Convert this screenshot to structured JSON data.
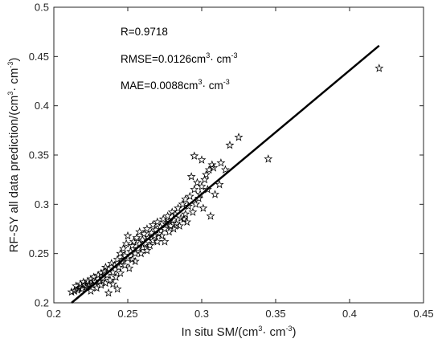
{
  "chart_data": {
    "type": "scatter",
    "xlabel": {
      "main": "In situ SM/(cm",
      "sup1": "3",
      "mid": "· cm",
      "sup2": "-3",
      "end": ")"
    },
    "ylabel": {
      "main": "RF-SY all data prediction/(cm",
      "sup1": "3",
      "mid": "· cm",
      "sup2": "-3",
      "end": ")"
    },
    "xlim": [
      0.2,
      0.45
    ],
    "ylim": [
      0.2,
      0.5
    ],
    "x_ticks": [
      "0.2",
      "0.25",
      "0.3",
      "0.35",
      "0.4",
      "0.45"
    ],
    "y_ticks": [
      "0.2",
      "0.25",
      "0.3",
      "0.35",
      "0.4",
      "0.45",
      "0.5"
    ],
    "grid": false,
    "annotations": {
      "r": "R=0.9718",
      "rmse": {
        "main": "RMSE=0.0126cm",
        "sup1": "3",
        "mid": "· cm",
        "sup2": "-3"
      },
      "mae": {
        "main": "MAE=0.0088cm",
        "sup1": "3",
        "mid": "· cm",
        "sup2": "-3"
      }
    },
    "fit_line": {
      "x": [
        0.212,
        0.42
      ],
      "y": [
        0.2,
        0.461
      ]
    },
    "marker": "star",
    "colors": {
      "markers": "#000000",
      "line": "#000000"
    },
    "points": [
      [
        0.212,
        0.211
      ],
      [
        0.214,
        0.212
      ],
      [
        0.216,
        0.213
      ],
      [
        0.215,
        0.217
      ],
      [
        0.217,
        0.215
      ],
      [
        0.218,
        0.219
      ],
      [
        0.219,
        0.214
      ],
      [
        0.22,
        0.221
      ],
      [
        0.221,
        0.218
      ],
      [
        0.222,
        0.216
      ],
      [
        0.223,
        0.222
      ],
      [
        0.224,
        0.219
      ],
      [
        0.225,
        0.224
      ],
      [
        0.225,
        0.212
      ],
      [
        0.226,
        0.218
      ],
      [
        0.227,
        0.226
      ],
      [
        0.228,
        0.221
      ],
      [
        0.229,
        0.215
      ],
      [
        0.23,
        0.228
      ],
      [
        0.231,
        0.222
      ],
      [
        0.232,
        0.218
      ],
      [
        0.232,
        0.23
      ],
      [
        0.233,
        0.225
      ],
      [
        0.234,
        0.232
      ],
      [
        0.235,
        0.22
      ],
      [
        0.235,
        0.236
      ],
      [
        0.236,
        0.228
      ],
      [
        0.237,
        0.21
      ],
      [
        0.237,
        0.234
      ],
      [
        0.238,
        0.223
      ],
      [
        0.239,
        0.24
      ],
      [
        0.24,
        0.231
      ],
      [
        0.24,
        0.219
      ],
      [
        0.241,
        0.238
      ],
      [
        0.242,
        0.226
      ],
      [
        0.243,
        0.244
      ],
      [
        0.243,
        0.214
      ],
      [
        0.244,
        0.236
      ],
      [
        0.245,
        0.25
      ],
      [
        0.245,
        0.23
      ],
      [
        0.246,
        0.242
      ],
      [
        0.247,
        0.255
      ],
      [
        0.248,
        0.238
      ],
      [
        0.248,
        0.248
      ],
      [
        0.249,
        0.26
      ],
      [
        0.25,
        0.245
      ],
      [
        0.25,
        0.268
      ],
      [
        0.251,
        0.235
      ],
      [
        0.252,
        0.252
      ],
      [
        0.253,
        0.258
      ],
      [
        0.253,
        0.244
      ],
      [
        0.254,
        0.262
      ],
      [
        0.255,
        0.25
      ],
      [
        0.255,
        0.242
      ],
      [
        0.256,
        0.266
      ],
      [
        0.257,
        0.255
      ],
      [
        0.258,
        0.26
      ],
      [
        0.258,
        0.272
      ],
      [
        0.259,
        0.25
      ],
      [
        0.26,
        0.264
      ],
      [
        0.26,
        0.256
      ],
      [
        0.261,
        0.27
      ],
      [
        0.262,
        0.26
      ],
      [
        0.263,
        0.253
      ],
      [
        0.263,
        0.275
      ],
      [
        0.264,
        0.266
      ],
      [
        0.265,
        0.258
      ],
      [
        0.266,
        0.271
      ],
      [
        0.267,
        0.263
      ],
      [
        0.267,
        0.279
      ],
      [
        0.268,
        0.268
      ],
      [
        0.269,
        0.274
      ],
      [
        0.27,
        0.262
      ],
      [
        0.27,
        0.282
      ],
      [
        0.271,
        0.27
      ],
      [
        0.272,
        0.277
      ],
      [
        0.273,
        0.268
      ],
      [
        0.274,
        0.285
      ],
      [
        0.275,
        0.275
      ],
      [
        0.275,
        0.262
      ],
      [
        0.276,
        0.28
      ],
      [
        0.277,
        0.288
      ],
      [
        0.278,
        0.272
      ],
      [
        0.278,
        0.283
      ],
      [
        0.279,
        0.278
      ],
      [
        0.28,
        0.292
      ],
      [
        0.281,
        0.275
      ],
      [
        0.281,
        0.284
      ],
      [
        0.282,
        0.29
      ],
      [
        0.283,
        0.28
      ],
      [
        0.284,
        0.296
      ],
      [
        0.285,
        0.278
      ],
      [
        0.286,
        0.286
      ],
      [
        0.287,
        0.3
      ],
      [
        0.288,
        0.285
      ],
      [
        0.289,
        0.305
      ],
      [
        0.289,
        0.29
      ],
      [
        0.29,
        0.282
      ],
      [
        0.291,
        0.298
      ],
      [
        0.292,
        0.308
      ],
      [
        0.293,
        0.328
      ],
      [
        0.294,
        0.292
      ],
      [
        0.295,
        0.315
      ],
      [
        0.295,
        0.349
      ],
      [
        0.296,
        0.3
      ],
      [
        0.297,
        0.322
      ],
      [
        0.298,
        0.306
      ],
      [
        0.299,
        0.31
      ],
      [
        0.3,
        0.318
      ],
      [
        0.3,
        0.345
      ],
      [
        0.301,
        0.296
      ],
      [
        0.302,
        0.325
      ],
      [
        0.303,
        0.33
      ],
      [
        0.304,
        0.315
      ],
      [
        0.305,
        0.335
      ],
      [
        0.306,
        0.288
      ],
      [
        0.307,
        0.34
      ],
      [
        0.308,
        0.337
      ],
      [
        0.309,
        0.31
      ],
      [
        0.312,
        0.32
      ],
      [
        0.313,
        0.342
      ],
      [
        0.316,
        0.335
      ],
      [
        0.319,
        0.36
      ],
      [
        0.325,
        0.368
      ],
      [
        0.345,
        0.346
      ],
      [
        0.42,
        0.438
      ]
    ]
  }
}
